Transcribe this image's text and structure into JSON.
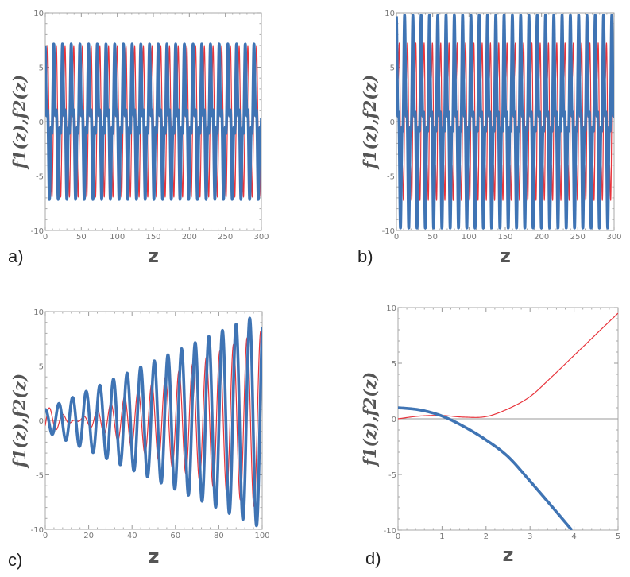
{
  "chart_data": [
    {
      "panel": "a)",
      "type": "line",
      "xlabel": "z",
      "ylabel": "f1(z),f2(z)",
      "xlim": [
        0,
        300
      ],
      "ylim": [
        -10,
        10
      ],
      "xticks": [
        "0",
        "50",
        "100",
        "150",
        "200",
        "250",
        "300"
      ],
      "yticks": [
        "-10",
        "-5",
        "0",
        "5",
        "10"
      ],
      "series": [
        {
          "name": "f1",
          "color": "#3f74b4",
          "model": [
            {
              "amp": 5.0,
              "growth": 0,
              "freq": 0.52,
              "phase": 0
            },
            {
              "amp": 2.2,
              "growth": 0,
              "freq": 1.56,
              "phase": 0.5
            }
          ]
        },
        {
          "name": "f2",
          "color": "#e8343c",
          "model": [
            {
              "amp": 5.0,
              "growth": 0,
              "freq": 0.52,
              "phase": -1.57
            },
            {
              "amp": 2.0,
              "growth": 0,
              "freq": 1.56,
              "phase": 1.0
            }
          ]
        }
      ]
    },
    {
      "panel": "b)",
      "type": "line",
      "xlabel": "z",
      "ylabel": "f1(z),f2(z)",
      "xlim": [
        0,
        300
      ],
      "ylim": [
        -10,
        10
      ],
      "xticks": [
        "0",
        "50",
        "100",
        "150",
        "200",
        "250",
        "300"
      ],
      "yticks": [
        "-10",
        "-5",
        "0",
        "5",
        "10"
      ],
      "series": [
        {
          "name": "f1",
          "color": "#3f74b4",
          "model": [
            {
              "amp": 7.0,
              "growth": 0,
              "freq": 0.55,
              "phase": 0
            },
            {
              "amp": 2.8,
              "growth": 0,
              "freq": 1.65,
              "phase": 0.3
            }
          ]
        },
        {
          "name": "f2",
          "color": "#e8343c",
          "model": [
            {
              "amp": 6.8,
              "growth": 0,
              "freq": 0.55,
              "phase": -1.4
            },
            {
              "amp": 2.8,
              "growth": 0,
              "freq": 1.65,
              "phase": -0.8
            }
          ]
        }
      ]
    },
    {
      "panel": "c)",
      "type": "line",
      "xlabel": "z",
      "ylabel": "f1(z),f2(z)",
      "xlim": [
        0,
        100
      ],
      "ylim": [
        -10,
        10
      ],
      "xticks": [
        "0",
        "20",
        "40",
        "60",
        "80",
        "100"
      ],
      "yticks": [
        "-10",
        "-5",
        "0",
        "5",
        "10"
      ],
      "series": [
        {
          "name": "f1",
          "color": "#3f74b4",
          "model": [
            {
              "amp": 1.0,
              "growth": 0.089,
              "freq": 1.0,
              "phase": 0
            }
          ]
        },
        {
          "name": "f2",
          "color": "#e8343c",
          "model": [
            {
              "amp": -1.34,
              "growth": 0.096,
              "freq": 1.0,
              "phase": 1.2
            }
          ]
        }
      ]
    },
    {
      "panel": "d)",
      "type": "line",
      "xlabel": "z",
      "ylabel": "f1(z),f2(z)",
      "xlim": [
        0,
        5
      ],
      "ylim": [
        -10,
        10
      ],
      "xticks": [
        "0",
        "1",
        "2",
        "3",
        "4",
        "5"
      ],
      "yticks": [
        "-10",
        "-5",
        "0",
        "5",
        "10"
      ],
      "series": [
        {
          "name": "f1",
          "color": "#3f74b4",
          "x": [
            0,
            0.5,
            1,
            1.5,
            2,
            2.5,
            3,
            3.5,
            3.95
          ],
          "y": [
            1,
            0.8,
            0.25,
            -0.7,
            -1.9,
            -3.4,
            -5.6,
            -7.9,
            -10
          ]
        },
        {
          "name": "f2",
          "color": "#e8343c",
          "x": [
            0,
            0.5,
            1,
            1.5,
            2,
            2.5,
            3,
            3.5,
            4,
            4.5,
            5
          ],
          "y": [
            0,
            0.25,
            0.3,
            0.15,
            0.2,
            0.9,
            2.0,
            3.8,
            5.7,
            7.6,
            9.5
          ]
        }
      ]
    }
  ]
}
